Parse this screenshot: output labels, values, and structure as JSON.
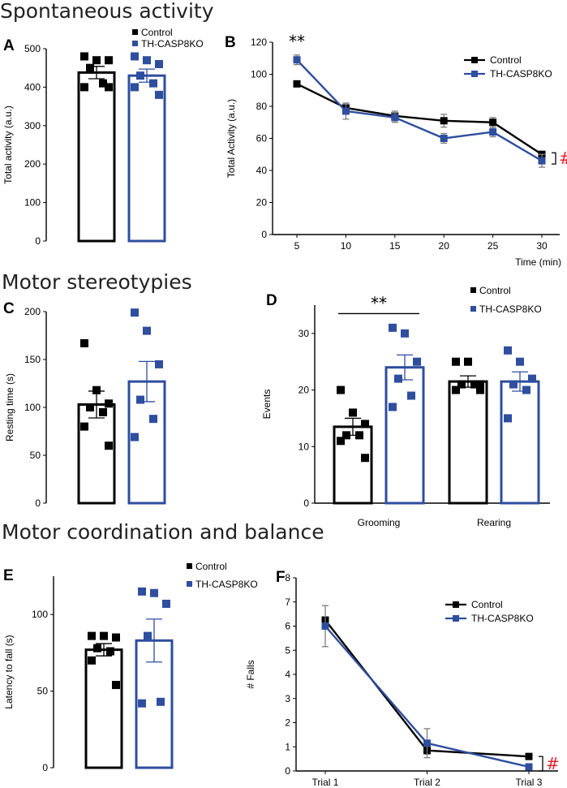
{
  "sections": [
    {
      "title": "Spontaneous activity"
    },
    {
      "title": "Motor stereotypies"
    },
    {
      "title": "Motor coordination and balance"
    }
  ],
  "colors": {
    "control": "#000000",
    "ko": "#2e4e9e",
    "sig": "#e0242f"
  },
  "chart_data": [
    {
      "id": "A",
      "type": "bar",
      "label": "A",
      "ylabel": "Total activity (a.u.)",
      "xlabel": "",
      "ylim": [
        0,
        500
      ],
      "yticks": [
        0,
        100,
        200,
        300,
        400,
        500
      ],
      "legend": [
        {
          "name": "Control"
        },
        {
          "name": "TH-CASP8KO"
        }
      ],
      "series": [
        {
          "name": "Control",
          "mean": 438,
          "sem": 16,
          "points": [
            480,
            470,
            470,
            450,
            410,
            400,
            400
          ]
        },
        {
          "name": "TH-CASP8KO",
          "mean": 430,
          "sem": 17,
          "points": [
            480,
            470,
            460,
            430,
            410,
            400,
            380
          ]
        }
      ]
    },
    {
      "id": "B",
      "type": "line",
      "label": "B",
      "ylabel": "Total Activity (a.u.)",
      "xlabel": "Time (min)",
      "x": [
        5,
        10,
        15,
        20,
        25,
        30
      ],
      "ylim": [
        0,
        120
      ],
      "yticks": [
        0,
        20,
        40,
        60,
        80,
        100,
        120
      ],
      "legend": [
        {
          "name": "Control"
        },
        {
          "name": "TH-CASP8KO"
        }
      ],
      "series": [
        {
          "name": "Control",
          "values": [
            94,
            79,
            74,
            71,
            70,
            50
          ],
          "sem": [
            1,
            3,
            3,
            4,
            3,
            2
          ]
        },
        {
          "name": "TH-CASP8KO",
          "values": [
            109,
            77,
            73,
            60,
            64,
            46
          ],
          "sem": [
            3,
            5,
            3,
            3,
            3,
            4
          ]
        }
      ],
      "annotations": [
        {
          "text": "**",
          "x": 5
        },
        {
          "text": "#",
          "x": 30
        }
      ]
    },
    {
      "id": "C",
      "type": "bar",
      "label": "C",
      "ylabel": "Resting time (s)",
      "xlabel": "",
      "ylim": [
        0,
        200
      ],
      "yticks": [
        0,
        50,
        100,
        150,
        200
      ],
      "series": [
        {
          "name": "Control",
          "mean": 103,
          "sem": 14,
          "points": [
            167,
            118,
            104,
            100,
            95,
            80,
            60
          ]
        },
        {
          "name": "TH-CASP8KO",
          "mean": 127,
          "sem": 21,
          "points": [
            199,
            180,
            145,
            108,
            88,
            69
          ]
        }
      ]
    },
    {
      "id": "D",
      "type": "bar",
      "label": "D",
      "ylabel": "Events",
      "xlabel": "",
      "categories": [
        "Grooming",
        "Rearing"
      ],
      "ylim": [
        0,
        35
      ],
      "yticks": [
        0,
        10,
        20,
        30
      ],
      "legend": [
        {
          "name": "Control"
        },
        {
          "name": "TH-CASP8KO"
        }
      ],
      "series": [
        {
          "name": "Control",
          "means": [
            13.5,
            21.5
          ],
          "sems": [
            1.5,
            1.0
          ],
          "points": [
            [
              20,
              16,
              14,
              12,
              12,
              11,
              8
            ],
            [
              25,
              25,
              21,
              21,
              21,
              20,
              20
            ]
          ]
        },
        {
          "name": "TH-CASP8KO",
          "means": [
            24,
            21.5
          ],
          "sems": [
            2.2,
            1.7
          ],
          "points": [
            [
              31,
              30,
              25,
              22,
              19,
              17
            ],
            [
              27,
              25,
              22,
              21,
              20,
              15
            ]
          ]
        }
      ],
      "annotations": [
        {
          "text": "**",
          "category": "Grooming"
        }
      ]
    },
    {
      "id": "E",
      "type": "bar",
      "label": "E",
      "ylabel": "Latency to fall (s)",
      "xlabel": "",
      "ylim": [
        0,
        125
      ],
      "yticks": [
        0,
        50,
        100
      ],
      "legend": [
        {
          "name": "Control"
        },
        {
          "name": "TH-CASP8KO"
        }
      ],
      "series": [
        {
          "name": "Control",
          "mean": 77,
          "sem": 4,
          "points": [
            86,
            86,
            85,
            78,
            76,
            70,
            54
          ]
        },
        {
          "name": "TH-CASP8KO",
          "mean": 83,
          "sem": 14,
          "points": [
            115,
            114,
            107,
            86,
            43,
            42
          ]
        }
      ]
    },
    {
      "id": "F",
      "type": "line",
      "label": "F",
      "ylabel": "# Falls",
      "xlabel": "",
      "categories": [
        "Trial 1",
        "Trial 2",
        "Trial 3"
      ],
      "ylim": [
        0,
        8
      ],
      "yticks": [
        0,
        1,
        2,
        3,
        4,
        5,
        6,
        7,
        8
      ],
      "legend": [
        {
          "name": "Control"
        },
        {
          "name": "TH-CASP8KO"
        }
      ],
      "series": [
        {
          "name": "Control",
          "values": [
            6.25,
            0.85,
            0.6
          ],
          "sem": [
            0.1,
            0.15,
            0.1
          ]
        },
        {
          "name": "TH-CASP8KO",
          "values": [
            6.0,
            1.15,
            0.17
          ],
          "sem": [
            0.85,
            0.6,
            0.1
          ]
        }
      ],
      "annotations": [
        {
          "text": "#",
          "category": "Trial 3"
        }
      ]
    }
  ]
}
